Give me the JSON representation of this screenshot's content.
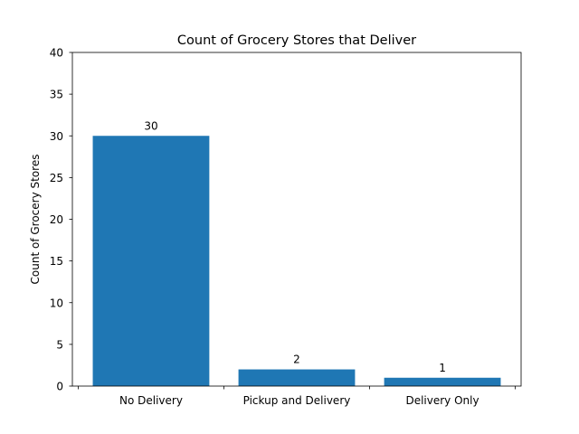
{
  "chart_data": {
    "type": "bar",
    "title": "Count of Grocery Stores that Deliver",
    "xlabel": "",
    "ylabel": "Count of Grocery Stores",
    "categories": [
      "No Delivery",
      "Pickup and Delivery",
      "Delivery Only"
    ],
    "values": [
      30,
      2,
      1
    ],
    "data_labels": [
      "30",
      "2",
      "1"
    ],
    "ylim": [
      0,
      40
    ],
    "yticks": [
      0,
      5,
      10,
      15,
      20,
      25,
      30,
      35,
      40
    ],
    "grid": false,
    "legend": "none",
    "bar_color": "#1f77b4"
  }
}
